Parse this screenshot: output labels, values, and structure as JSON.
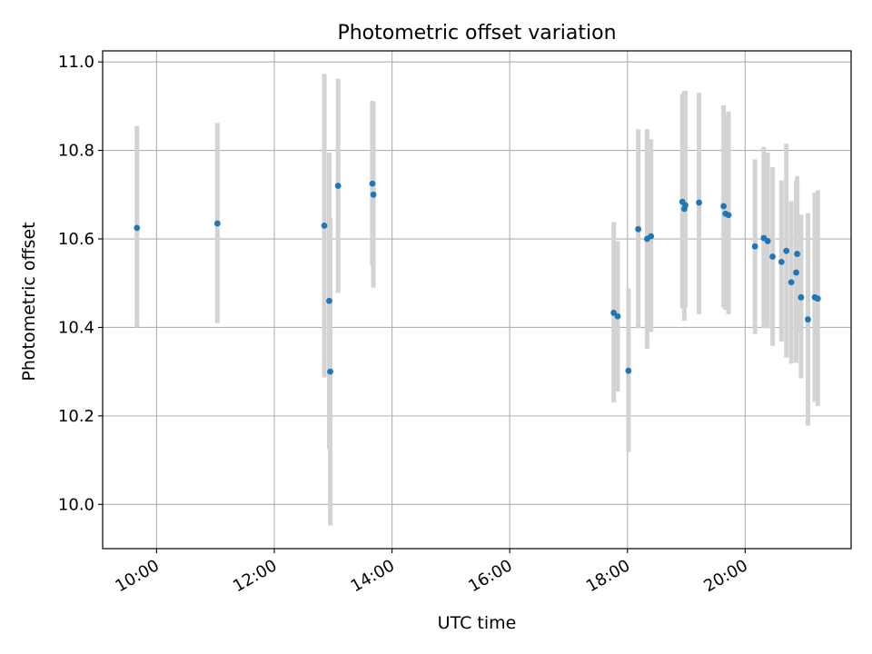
{
  "chart_data": {
    "type": "scatter",
    "title": "Photometric offset variation",
    "xlabel": "UTC time",
    "ylabel": "Photometric offset",
    "x_tick_labels": [
      "10:00",
      "12:00",
      "14:00",
      "16:00",
      "18:00",
      "20:00"
    ],
    "y_tick_labels": [
      "10.0",
      "10.2",
      "10.4",
      "10.6",
      "10.8",
      "11.0"
    ],
    "xlim": [
      "09:05",
      "21:48"
    ],
    "ylim": [
      9.9,
      11.025
    ],
    "grid": true,
    "marker_color": "#1f77b4",
    "errorbar_color": "#d3d3d3",
    "points": [
      {
        "x": "09:40",
        "y": 10.625,
        "err_low": 10.4,
        "err_high": 10.855
      },
      {
        "x": "11:02",
        "y": 10.635,
        "err_low": 10.41,
        "err_high": 10.862
      },
      {
        "x": "12:51",
        "y": 10.63,
        "err_low": 10.287,
        "err_high": 10.973
      },
      {
        "x": "12:56",
        "y": 10.46,
        "err_low": 10.125,
        "err_high": 10.795
      },
      {
        "x": "12:57",
        "y": 10.3,
        "err_low": 9.952,
        "err_high": 10.648
      },
      {
        "x": "13:05",
        "y": 10.72,
        "err_low": 10.478,
        "err_high": 10.962
      },
      {
        "x": "13:40",
        "y": 10.725,
        "err_low": 10.538,
        "err_high": 10.912
      },
      {
        "x": "13:41",
        "y": 10.7,
        "err_low": 10.49,
        "err_high": 10.91
      },
      {
        "x": "17:46",
        "y": 10.433,
        "err_low": 10.23,
        "err_high": 10.638
      },
      {
        "x": "17:50",
        "y": 10.425,
        "err_low": 10.255,
        "err_high": 10.595
      },
      {
        "x": "18:01",
        "y": 10.302,
        "err_low": 10.118,
        "err_high": 10.488
      },
      {
        "x": "18:11",
        "y": 10.622,
        "err_low": 10.398,
        "err_high": 10.848
      },
      {
        "x": "18:20",
        "y": 10.6,
        "err_low": 10.352,
        "err_high": 10.848
      },
      {
        "x": "18:24",
        "y": 10.606,
        "err_low": 10.39,
        "err_high": 10.825
      },
      {
        "x": "18:56",
        "y": 10.684,
        "err_low": 10.443,
        "err_high": 10.928
      },
      {
        "x": "18:58",
        "y": 10.668,
        "err_low": 10.415,
        "err_high": 10.935
      },
      {
        "x": "18:59",
        "y": 10.676,
        "err_low": 10.445,
        "err_high": 10.935
      },
      {
        "x": "19:13",
        "y": 10.682,
        "err_low": 10.43,
        "err_high": 10.93
      },
      {
        "x": "19:38",
        "y": 10.674,
        "err_low": 10.445,
        "err_high": 10.902
      },
      {
        "x": "19:40",
        "y": 10.657,
        "err_low": 10.44,
        "err_high": 10.88
      },
      {
        "x": "19:43",
        "y": 10.654,
        "err_low": 10.43,
        "err_high": 10.888
      },
      {
        "x": "20:10",
        "y": 10.583,
        "err_low": 10.385,
        "err_high": 10.78
      },
      {
        "x": "20:19",
        "y": 10.602,
        "err_low": 10.398,
        "err_high": 10.808
      },
      {
        "x": "20:23",
        "y": 10.595,
        "err_low": 10.398,
        "err_high": 10.795
      },
      {
        "x": "20:28",
        "y": 10.56,
        "err_low": 10.358,
        "err_high": 10.762
      },
      {
        "x": "20:37",
        "y": 10.548,
        "err_low": 10.368,
        "err_high": 10.732
      },
      {
        "x": "20:42",
        "y": 10.573,
        "err_low": 10.332,
        "err_high": 10.815
      },
      {
        "x": "20:47",
        "y": 10.502,
        "err_low": 10.318,
        "err_high": 10.685
      },
      {
        "x": "20:52",
        "y": 10.524,
        "err_low": 10.32,
        "err_high": 10.732
      },
      {
        "x": "20:53",
        "y": 10.566,
        "err_low": 10.39,
        "err_high": 10.742
      },
      {
        "x": "20:57",
        "y": 10.468,
        "err_low": 10.285,
        "err_high": 10.655
      },
      {
        "x": "21:04",
        "y": 10.418,
        "err_low": 10.178,
        "err_high": 10.658
      },
      {
        "x": "21:11",
        "y": 10.468,
        "err_low": 10.232,
        "err_high": 10.705
      },
      {
        "x": "21:14",
        "y": 10.465,
        "err_low": 10.222,
        "err_high": 10.71
      }
    ]
  }
}
